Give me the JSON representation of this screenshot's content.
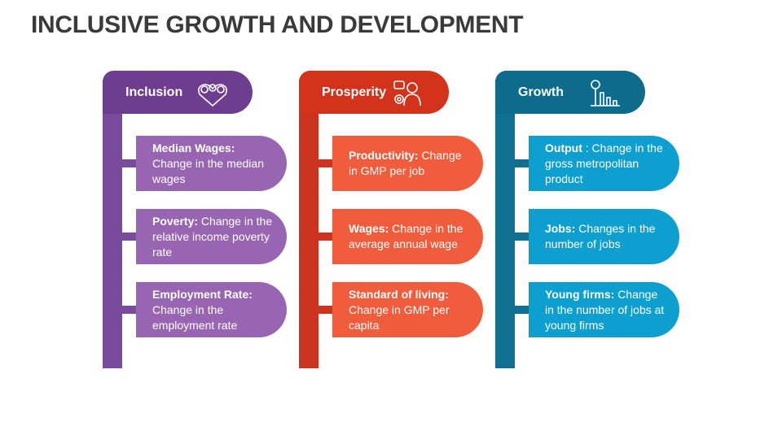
{
  "title": "INCLUSIVE GROWTH AND DEVELOPMENT",
  "columns": [
    {
      "header": "Inclusion",
      "items": [
        {
          "term": "Median Wages:",
          "text": "Change in the median wages"
        },
        {
          "term": "Poverty:",
          "text": "Change in the relative income poverty rate"
        },
        {
          "term": "Employment Rate:",
          "text": "Change in the employment rate"
        }
      ]
    },
    {
      "header": "Prosperity",
      "items": [
        {
          "term": "Productivity:",
          "text": "Change in GMP per job"
        },
        {
          "term": "Wages:",
          "text": "Change in the average annual wage"
        },
        {
          "term": "Standard of living:",
          "text": "Change in GMP per capita"
        }
      ]
    },
    {
      "header": "Growth",
      "items": [
        {
          "term": "Output",
          "text": ": Change in the gross metropolitan product"
        },
        {
          "term": "Jobs:",
          "text": "Changes in the number of jobs"
        },
        {
          "term": "Young firms:",
          "text": "Change in the number of jobs at young firms"
        }
      ]
    }
  ]
}
